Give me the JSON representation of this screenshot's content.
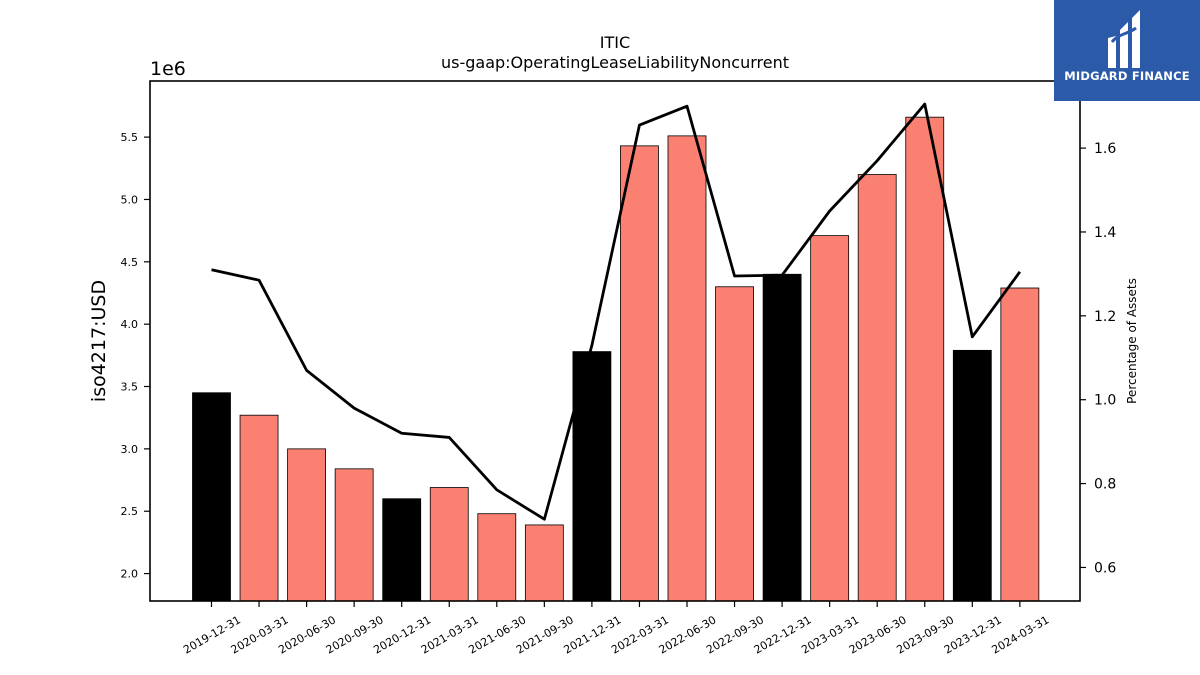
{
  "chart_data": {
    "type": "bar",
    "title": "ITIC",
    "subtitle": "us-gaap:OperatingLeaseLiabilityNoncurrent",
    "ylabel": "iso4217:USD",
    "y_offset_label": "1e6",
    "y2label": "Percentage of Assets",
    "categories": [
      "2019-12-31",
      "2020-03-31",
      "2020-06-30",
      "2020-09-30",
      "2020-12-31",
      "2021-03-31",
      "2021-06-30",
      "2021-09-30",
      "2021-12-31",
      "2022-03-31",
      "2022-06-30",
      "2022-09-30",
      "2022-12-31",
      "2023-03-31",
      "2023-06-30",
      "2023-09-30",
      "2023-12-31",
      "2024-03-31"
    ],
    "series": [
      {
        "type": "bar",
        "values": [
          3.45,
          3.27,
          3.0,
          2.84,
          2.6,
          2.69,
          2.48,
          2.39,
          3.78,
          5.43,
          5.51,
          4.3,
          4.4,
          4.71,
          5.2,
          5.66,
          3.79,
          4.29
        ],
        "colors": [
          "#000000",
          "#fa8072",
          "#fa8072",
          "#fa8072",
          "#000000",
          "#fa8072",
          "#fa8072",
          "#fa8072",
          "#000000",
          "#fa8072",
          "#fa8072",
          "#fa8072",
          "#000000",
          "#fa8072",
          "#fa8072",
          "#fa8072",
          "#000000",
          "#fa8072"
        ]
      },
      {
        "type": "line",
        "axis": "right",
        "color": "#000000",
        "values": [
          1.31,
          1.285,
          1.07,
          0.98,
          0.92,
          0.91,
          0.785,
          0.715,
          1.13,
          1.655,
          1.7,
          1.295,
          1.297,
          1.45,
          1.57,
          1.705,
          1.15,
          1.305
        ]
      }
    ],
    "ylim": [
      1.78,
      5.95
    ],
    "y2lim": [
      0.52,
      1.76
    ],
    "yticks": [
      2.0,
      2.5,
      3.0,
      3.5,
      4.0,
      4.5,
      5.0,
      5.5
    ],
    "y2ticks": [
      0.6,
      0.8,
      1.0,
      1.2,
      1.4,
      1.6
    ],
    "grid": false,
    "legend": "none"
  },
  "logo": {
    "text": "MIDGARD FINANCE"
  }
}
